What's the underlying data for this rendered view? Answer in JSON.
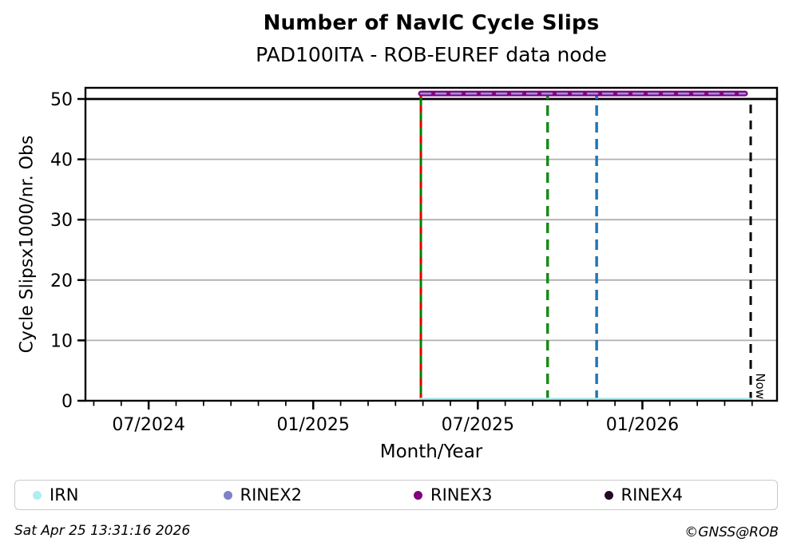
{
  "footer": {
    "timestamp": "Sat Apr 25 13:31:16 2026",
    "credit": "©GNSS@ROB"
  },
  "legend": {
    "items": [
      {
        "label": "IRN",
        "color": "#AFEEEE"
      },
      {
        "label": "RINEX2",
        "color": "#8181C7"
      },
      {
        "label": "RINEX3",
        "color": "#800080"
      },
      {
        "label": "RINEX4",
        "color": "#250828"
      }
    ]
  },
  "chart_data": {
    "type": "line",
    "title": "Number of NavIC Cycle Slips",
    "subtitle": "PAD100ITA - ROB-EUREF data node",
    "xlabel": "Month/Year",
    "ylabel": "Cycle Slipsx1000/nr. Obs",
    "x_domain": [
      2024.308,
      2026.409
    ],
    "ylim": [
      0,
      51.85
    ],
    "grid_color": "#b0b0b0",
    "y_ticks": [
      0,
      10,
      20,
      30,
      40,
      50
    ],
    "y_gridlines": [
      10,
      20,
      30,
      40
    ],
    "x_ticks_major": [
      {
        "x": 2024.5,
        "label": "07/2024"
      },
      {
        "x": 2025.0,
        "label": "01/2025"
      },
      {
        "x": 2025.5,
        "label": "07/2025"
      },
      {
        "x": 2026.0,
        "label": "01/2026"
      }
    ],
    "x_ticks_minor": [
      2024.3333,
      2024.4167,
      2024.5833,
      2024.6667,
      2024.75,
      2024.8333,
      2024.9167,
      2025.0833,
      2025.1667,
      2025.25,
      2025.3333,
      2025.4167,
      2025.5833,
      2025.6667,
      2025.75,
      2025.8333,
      2025.9167,
      2026.0833,
      2026.1667,
      2026.25,
      2026.3333
    ],
    "cutoff_line": {
      "y": 50,
      "color": "#000000",
      "width": 2.8
    },
    "series": [
      {
        "name": "RINEX3",
        "color": "#800080",
        "y": 50.9,
        "x_start": 2025.327,
        "x_end": 2026.312,
        "style": "solid",
        "width": 7
      },
      {
        "name": "RINEX2",
        "color": "#9a94d6",
        "y": 50.9,
        "x_start": 2025.327,
        "x_end": 2026.312,
        "style": "dashed",
        "width": 2.6,
        "dash": "12 7"
      },
      {
        "name": "IRN",
        "color": "#AFEEEE",
        "y": 0.3,
        "x_start": 2025.327,
        "x_end": 2026.329,
        "style": "solid",
        "width": 3
      },
      {
        "name": "RINEX4",
        "color": "#250828",
        "y": null
      }
    ],
    "event_lines": [
      {
        "x": 2025.327,
        "color": "#008000",
        "style": "solid",
        "width": 3,
        "y_top": 51.3,
        "overlay": {
          "color": "#e00000",
          "dash": "9 10",
          "width": 3
        }
      },
      {
        "x": 2025.712,
        "color": "#1a8a1a",
        "style": "dashed",
        "width": 3.5,
        "y_top": 50.9,
        "dash": "13 8"
      },
      {
        "x": 2025.861,
        "color": "#1f77b4",
        "style": "dashed",
        "width": 3.5,
        "y_top": 50.9,
        "dash": "13 8"
      },
      {
        "x": 2026.329,
        "color": "#000000",
        "style": "dashed",
        "width": 3,
        "y_top": 49.6,
        "dash": "11 9",
        "label": "Now"
      }
    ]
  }
}
